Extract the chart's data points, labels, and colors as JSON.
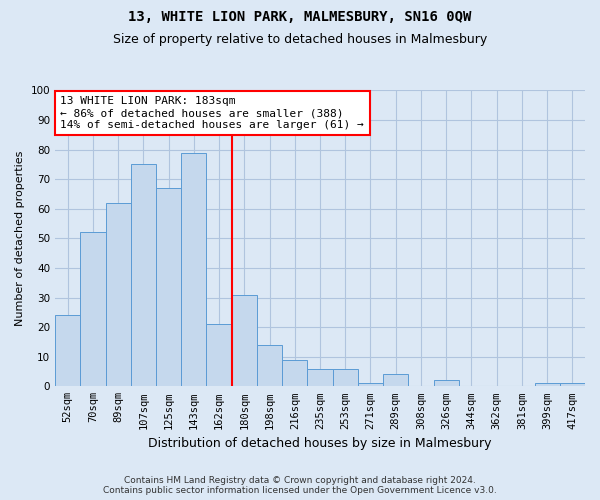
{
  "title": "13, WHITE LION PARK, MALMESBURY, SN16 0QW",
  "subtitle": "Size of property relative to detached houses in Malmesbury",
  "xlabel": "Distribution of detached houses by size in Malmesbury",
  "ylabel": "Number of detached properties",
  "footer_line1": "Contains HM Land Registry data © Crown copyright and database right 2024.",
  "footer_line2": "Contains public sector information licensed under the Open Government Licence v3.0.",
  "categories": [
    "52sqm",
    "70sqm",
    "89sqm",
    "107sqm",
    "125sqm",
    "143sqm",
    "162sqm",
    "180sqm",
    "198sqm",
    "216sqm",
    "235sqm",
    "253sqm",
    "271sqm",
    "289sqm",
    "308sqm",
    "326sqm",
    "344sqm",
    "362sqm",
    "381sqm",
    "399sqm",
    "417sqm"
  ],
  "values": [
    24,
    52,
    62,
    75,
    67,
    79,
    21,
    31,
    14,
    9,
    6,
    6,
    1,
    4,
    0,
    2,
    0,
    0,
    0,
    1,
    1
  ],
  "bar_color": "#c5d8ed",
  "bar_edge_color": "#5b9bd5",
  "grid_color": "#b0c4de",
  "background_color": "#dce8f5",
  "ylim": [
    0,
    100
  ],
  "yticks": [
    0,
    10,
    20,
    30,
    40,
    50,
    60,
    70,
    80,
    90,
    100
  ],
  "property_line_x": 6.5,
  "annotation_text": "13 WHITE LION PARK: 183sqm\n← 86% of detached houses are smaller (388)\n14% of semi-detached houses are larger (61) →",
  "annotation_box_color": "white",
  "annotation_box_edge_color": "red",
  "vertical_line_color": "red",
  "title_fontsize": 10,
  "subtitle_fontsize": 9,
  "ylabel_fontsize": 8,
  "xlabel_fontsize": 9,
  "tick_fontsize": 7.5,
  "annotation_fontsize": 8,
  "footer_fontsize": 6.5
}
